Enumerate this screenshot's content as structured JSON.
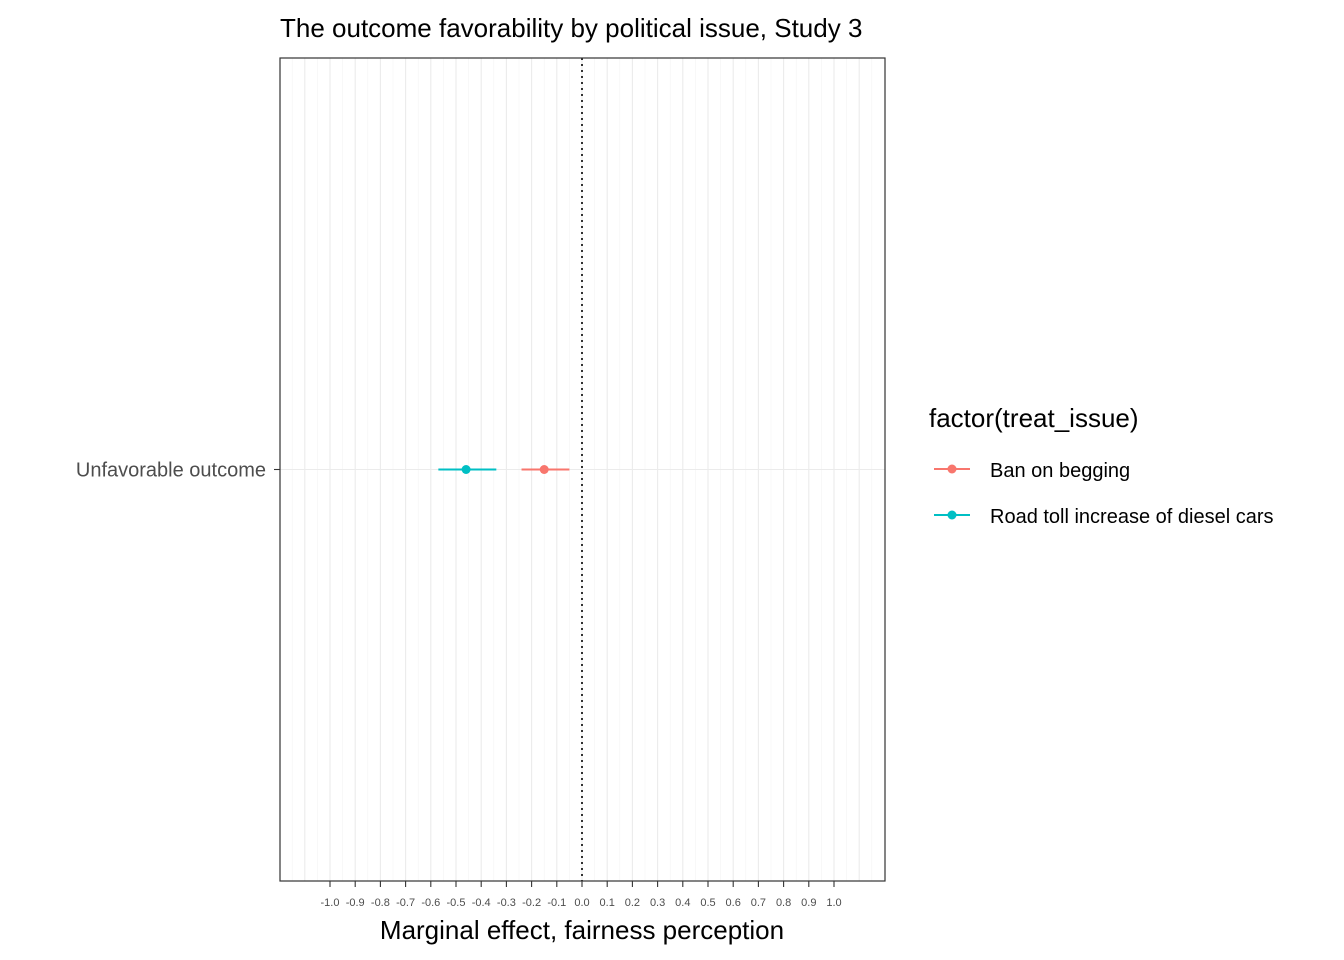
{
  "chart_data": {
    "type": "scatter",
    "title": "The outcome favorability by political issue, Study 3",
    "xlabel": "Marginal effect, fairness perception",
    "ylabel": "",
    "xlim": [
      -1.2,
      1.2
    ],
    "x_ticks": [
      "-1.0",
      "-0.9",
      "-0.8",
      "-0.7",
      "-0.6",
      "-0.5",
      "-0.4",
      "-0.3",
      "-0.2",
      "-0.1",
      "0.0",
      "0.1",
      "0.2",
      "0.3",
      "0.4",
      "0.5",
      "0.6",
      "0.7",
      "0.8",
      "0.9",
      "1.0"
    ],
    "categories": [
      "Unfavorable outcome"
    ],
    "reference_line": {
      "x": 0,
      "style": "dotted"
    },
    "grid": true,
    "legend": {
      "title": "factor(treat_issue)",
      "placement": "right"
    },
    "series": [
      {
        "name": "Ban on begging",
        "color": "#F8766D",
        "points": [
          {
            "category": "Unfavorable outcome",
            "estimate": -0.15,
            "ci_low": -0.24,
            "ci_high": -0.05
          }
        ]
      },
      {
        "name": "Road toll increase of diesel cars",
        "color": "#00BFC4",
        "points": [
          {
            "category": "Unfavorable outcome",
            "estimate": -0.46,
            "ci_low": -0.57,
            "ci_high": -0.34
          }
        ]
      }
    ]
  }
}
